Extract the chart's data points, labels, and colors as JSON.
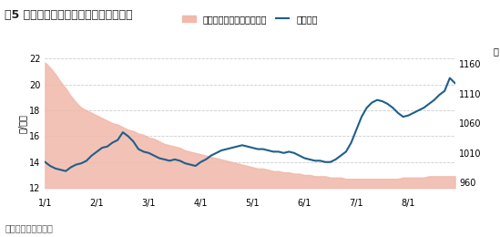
{
  "title": "图5 生猪价格及头均理论饲料成本走势图",
  "ylabel_left": "元/公斤",
  "ylabel_right": "元",
  "source": "数据来源：卓创资讯",
  "legend_feed": "头均理论饲料成本（右轴）",
  "legend_pig": "生猪价格",
  "ylim_left": [
    11.5,
    22.5
  ],
  "ylim_right": [
    940,
    1180
  ],
  "yticks_left": [
    12,
    14,
    16,
    18,
    20,
    22
  ],
  "yticks_right": [
    960,
    1010,
    1060,
    1110,
    1160
  ],
  "xtick_labels": [
    "1/1",
    "2/1",
    "3/1",
    "4/1",
    "5/1",
    "6/1",
    "7/1",
    "8/1"
  ],
  "feed_color": "#E8A090",
  "feed_fill_color": "#F2B8AA",
  "pig_line_color": "#1F5F8B",
  "bg_color": "#FFFFFF",
  "grid_color": "#CCCCCC",
  "title_color": "#222222",
  "feed_top": [
    21.7,
    21.3,
    20.8,
    20.2,
    19.7,
    19.1,
    18.6,
    18.2,
    18.0,
    17.8,
    17.6,
    17.4,
    17.2,
    17.0,
    16.9,
    16.7,
    16.5,
    16.4,
    16.2,
    16.1,
    15.9,
    15.8,
    15.6,
    15.4,
    15.3,
    15.2,
    15.1,
    14.9,
    14.8,
    14.7,
    14.6,
    14.5,
    14.4,
    14.3,
    14.2,
    14.1,
    14.0,
    13.9,
    13.8,
    13.7,
    13.6,
    13.5,
    13.5,
    13.4,
    13.3,
    13.3,
    13.2,
    13.2,
    13.1,
    13.1,
    13.0,
    13.0,
    12.9,
    12.9,
    12.9,
    12.8,
    12.8,
    12.8,
    12.7,
    12.7,
    12.7,
    12.7,
    12.7,
    12.7,
    12.7,
    12.7,
    12.7,
    12.7,
    12.7,
    12.8,
    12.8,
    12.8,
    12.8,
    12.8,
    12.9,
    12.9,
    12.9,
    12.9,
    12.9,
    12.9
  ],
  "feed_bottom": [
    12.0,
    12.0,
    12.0,
    12.0,
    12.0,
    12.0,
    12.0,
    12.0,
    12.0,
    12.0,
    12.0,
    12.0,
    12.0,
    12.0,
    12.0,
    12.0,
    12.0,
    12.0,
    12.0,
    12.0,
    12.0,
    12.0,
    12.0,
    12.0,
    12.0,
    12.0,
    12.0,
    12.0,
    12.0,
    12.0,
    12.0,
    12.0,
    12.0,
    12.0,
    12.0,
    12.0,
    12.0,
    12.0,
    12.0,
    12.0,
    12.0,
    12.0,
    12.0,
    12.0,
    12.0,
    12.0,
    12.0,
    12.0,
    12.0,
    12.0,
    12.0,
    12.0,
    12.0,
    12.0,
    12.0,
    12.0,
    12.0,
    12.0,
    12.0,
    12.0,
    12.0,
    12.0,
    12.0,
    12.0,
    12.0,
    12.0,
    12.0,
    12.0,
    12.0,
    12.0,
    12.0,
    12.0,
    12.0,
    12.0,
    12.0,
    12.0,
    12.0,
    12.0,
    12.0,
    12.0
  ],
  "pig_price": [
    14.0,
    13.7,
    13.5,
    13.4,
    13.3,
    13.6,
    13.8,
    13.9,
    14.1,
    14.5,
    14.8,
    15.1,
    15.2,
    15.5,
    15.7,
    16.3,
    16.0,
    15.6,
    15.0,
    14.8,
    14.7,
    14.5,
    14.3,
    14.2,
    14.1,
    14.2,
    14.1,
    13.9,
    13.8,
    13.7,
    14.0,
    14.2,
    14.5,
    14.7,
    14.9,
    15.0,
    15.1,
    15.2,
    15.3,
    15.2,
    15.1,
    15.0,
    15.0,
    14.9,
    14.8,
    14.8,
    14.7,
    14.8,
    14.7,
    14.5,
    14.3,
    14.2,
    14.1,
    14.1,
    14.0,
    14.0,
    14.2,
    14.5,
    14.8,
    15.5,
    16.5,
    17.5,
    18.2,
    18.6,
    18.8,
    18.7,
    18.5,
    18.2,
    17.8,
    17.5,
    17.6,
    17.8,
    18.0,
    18.2,
    18.5,
    18.8,
    19.2,
    19.5,
    20.5,
    20.1
  ],
  "xtick_positions": [
    0,
    10,
    20,
    30,
    40,
    50,
    60,
    70
  ]
}
